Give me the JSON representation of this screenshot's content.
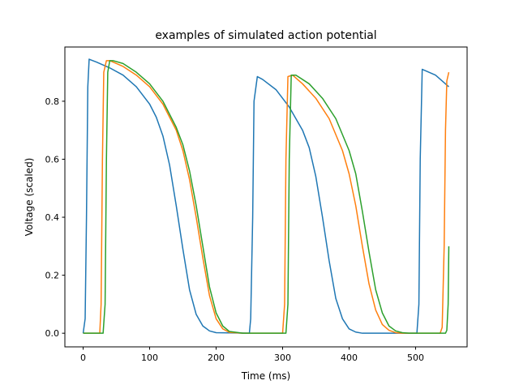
{
  "chart_data": {
    "type": "line",
    "title": "examples of simulated action potential",
    "xlabel": "Time (ms)",
    "ylabel": "Voltage (scaled)",
    "xlim": [
      -27.5,
      577.5
    ],
    "ylim": [
      -0.047,
      0.987
    ],
    "xticks": [
      0,
      100,
      200,
      300,
      400,
      500
    ],
    "yticks": [
      0.0,
      0.2,
      0.4,
      0.6,
      0.8
    ],
    "ytick_labels": [
      "0.0",
      "0.2",
      "0.4",
      "0.6",
      "0.8"
    ],
    "grid": false,
    "legend": null,
    "series": [
      {
        "color": "#1f77b4",
        "points": [
          [
            0,
            0.0
          ],
          [
            3,
            0.05
          ],
          [
            5,
            0.4
          ],
          [
            7,
            0.85
          ],
          [
            9,
            0.945
          ],
          [
            12,
            0.942
          ],
          [
            20,
            0.935
          ],
          [
            40,
            0.915
          ],
          [
            60,
            0.89
          ],
          [
            80,
            0.85
          ],
          [
            100,
            0.79
          ],
          [
            110,
            0.745
          ],
          [
            120,
            0.68
          ],
          [
            130,
            0.58
          ],
          [
            140,
            0.44
          ],
          [
            150,
            0.29
          ],
          [
            160,
            0.15
          ],
          [
            170,
            0.065
          ],
          [
            180,
            0.025
          ],
          [
            190,
            0.008
          ],
          [
            200,
            0.002
          ],
          [
            250,
            0.0
          ],
          [
            252,
            0.05
          ],
          [
            255,
            0.4
          ],
          [
            257,
            0.8
          ],
          [
            262,
            0.885
          ],
          [
            270,
            0.875
          ],
          [
            290,
            0.84
          ],
          [
            310,
            0.78
          ],
          [
            330,
            0.7
          ],
          [
            340,
            0.64
          ],
          [
            350,
            0.54
          ],
          [
            360,
            0.4
          ],
          [
            370,
            0.25
          ],
          [
            380,
            0.12
          ],
          [
            390,
            0.05
          ],
          [
            400,
            0.015
          ],
          [
            410,
            0.004
          ],
          [
            420,
            0.0
          ],
          [
            502,
            0.0
          ],
          [
            505,
            0.1
          ],
          [
            507,
            0.6
          ],
          [
            510,
            0.91
          ],
          [
            515,
            0.905
          ],
          [
            530,
            0.89
          ],
          [
            550,
            0.85
          ]
        ]
      },
      {
        "color": "#ff7f0e",
        "points": [
          [
            0,
            0.0
          ],
          [
            25,
            0.0
          ],
          [
            27,
            0.1
          ],
          [
            29,
            0.6
          ],
          [
            31,
            0.9
          ],
          [
            35,
            0.94
          ],
          [
            40,
            0.94
          ],
          [
            60,
            0.92
          ],
          [
            80,
            0.89
          ],
          [
            100,
            0.85
          ],
          [
            120,
            0.79
          ],
          [
            140,
            0.7
          ],
          [
            150,
            0.63
          ],
          [
            160,
            0.53
          ],
          [
            170,
            0.4
          ],
          [
            180,
            0.26
          ],
          [
            190,
            0.13
          ],
          [
            200,
            0.05
          ],
          [
            210,
            0.015
          ],
          [
            220,
            0.003
          ],
          [
            240,
            0.0
          ],
          [
            300,
            0.0
          ],
          [
            303,
            0.1
          ],
          [
            305,
            0.6
          ],
          [
            308,
            0.885
          ],
          [
            315,
            0.89
          ],
          [
            330,
            0.86
          ],
          [
            350,
            0.81
          ],
          [
            370,
            0.74
          ],
          [
            390,
            0.63
          ],
          [
            400,
            0.55
          ],
          [
            410,
            0.44
          ],
          [
            420,
            0.3
          ],
          [
            430,
            0.17
          ],
          [
            440,
            0.08
          ],
          [
            450,
            0.03
          ],
          [
            460,
            0.01
          ],
          [
            470,
            0.002
          ],
          [
            480,
            0.0
          ],
          [
            537,
            0.0
          ],
          [
            540,
            0.02
          ],
          [
            543,
            0.3
          ],
          [
            545,
            0.7
          ],
          [
            547,
            0.87
          ],
          [
            550,
            0.9
          ]
        ]
      },
      {
        "color": "#2ca02c",
        "points": [
          [
            0,
            0.0
          ],
          [
            30,
            0.0
          ],
          [
            33,
            0.1
          ],
          [
            35,
            0.6
          ],
          [
            37,
            0.9
          ],
          [
            40,
            0.94
          ],
          [
            45,
            0.94
          ],
          [
            60,
            0.93
          ],
          [
            80,
            0.9
          ],
          [
            100,
            0.86
          ],
          [
            120,
            0.8
          ],
          [
            140,
            0.71
          ],
          [
            150,
            0.65
          ],
          [
            160,
            0.56
          ],
          [
            170,
            0.44
          ],
          [
            180,
            0.3
          ],
          [
            190,
            0.16
          ],
          [
            200,
            0.07
          ],
          [
            210,
            0.025
          ],
          [
            220,
            0.006
          ],
          [
            240,
            0.0
          ],
          [
            305,
            0.0
          ],
          [
            308,
            0.1
          ],
          [
            310,
            0.6
          ],
          [
            313,
            0.89
          ],
          [
            320,
            0.89
          ],
          [
            340,
            0.86
          ],
          [
            360,
            0.81
          ],
          [
            380,
            0.74
          ],
          [
            400,
            0.63
          ],
          [
            410,
            0.55
          ],
          [
            420,
            0.42
          ],
          [
            430,
            0.28
          ],
          [
            440,
            0.15
          ],
          [
            450,
            0.07
          ],
          [
            460,
            0.025
          ],
          [
            470,
            0.008
          ],
          [
            480,
            0.002
          ],
          [
            490,
            0.0
          ],
          [
            545,
            0.0
          ],
          [
            547,
            0.01
          ],
          [
            549,
            0.1
          ],
          [
            550,
            0.3
          ]
        ]
      }
    ]
  }
}
